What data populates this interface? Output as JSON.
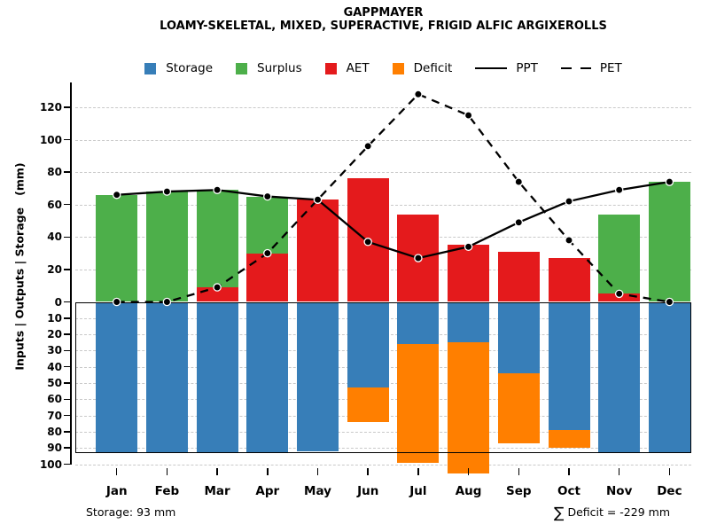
{
  "title": "GAPPMAYER",
  "subtitle": "LOAMY-SKELETAL, MIXED, SUPERACTIVE, FRIGID ALFIC ARGIXEROLLS",
  "ylabel": "Inputs | Outputs | Storage   (mm)",
  "footer": {
    "storage_note": "Storage: 93 mm",
    "sigma": "∑",
    "deficit_text": "Deficit = -229 mm"
  },
  "colors": {
    "storage": "#377EB8",
    "surplus": "#4DAF4A",
    "aet": "#E41A1C",
    "deficit": "#FF7F00",
    "line": "#000000",
    "grid": "#C9C9C9"
  },
  "legend": [
    {
      "label": "Storage",
      "type": "swatch",
      "color": "#377EB8"
    },
    {
      "label": "Surplus",
      "type": "swatch",
      "color": "#4DAF4A"
    },
    {
      "label": "AET",
      "type": "swatch",
      "color": "#E41A1C"
    },
    {
      "label": "Deficit",
      "type": "swatch",
      "color": "#FF7F00"
    },
    {
      "label": "PPT",
      "type": "line-solid",
      "color": "#000000"
    },
    {
      "label": "PET",
      "type": "line-dashed",
      "color": "#000000"
    }
  ],
  "chart_data": {
    "type": "bar",
    "subtype": "water-balance combo chart (stacked bars above/below zero + PPT/PET lines)",
    "categories": [
      "Jan",
      "Feb",
      "Mar",
      "Apr",
      "May",
      "Jun",
      "Jul",
      "Aug",
      "Sep",
      "Oct",
      "Nov",
      "Dec"
    ],
    "series": [
      {
        "name": "AET",
        "type": "bar",
        "stack": "above-zero",
        "color": "#E41A1C",
        "values": [
          0,
          0,
          9,
          30,
          63,
          76,
          54,
          35,
          31,
          27,
          5,
          0
        ]
      },
      {
        "name": "Surplus",
        "type": "bar",
        "stack": "above-zero",
        "color": "#4DAF4A",
        "values": [
          66,
          68,
          60,
          35,
          0,
          0,
          0,
          0,
          0,
          0,
          49,
          74
        ]
      },
      {
        "name": "Storage",
        "type": "bar",
        "stack": "below-zero",
        "color": "#377EB8",
        "values": [
          93,
          93,
          93,
          93,
          92,
          53,
          26,
          25,
          44,
          79,
          93,
          93
        ]
      },
      {
        "name": "Deficit",
        "type": "bar",
        "stack": "below-zero",
        "color": "#FF7F00",
        "values": [
          0,
          0,
          0,
          0,
          0,
          21,
          73,
          81,
          43,
          11,
          0,
          0
        ]
      },
      {
        "name": "PPT",
        "type": "line",
        "style": "solid",
        "color": "#000000",
        "values": [
          66,
          68,
          69,
          65,
          63,
          37,
          27,
          34,
          49,
          62,
          69,
          74
        ]
      },
      {
        "name": "PET",
        "type": "line",
        "style": "dashed",
        "color": "#000000",
        "values": [
          0,
          0,
          9,
          30,
          63,
          96,
          128,
          115,
          74,
          38,
          5,
          0
        ]
      }
    ],
    "ylim": [
      -105,
      132
    ],
    "y_ticks_above": [
      0,
      20,
      40,
      60,
      80,
      100,
      120
    ],
    "y_ticks_below": [
      10,
      20,
      30,
      40,
      50,
      60,
      70,
      80,
      90,
      100
    ],
    "grid": true,
    "legend_position": "top-center",
    "storage_capacity_mm": 93,
    "deficit_total_mm": -229
  }
}
